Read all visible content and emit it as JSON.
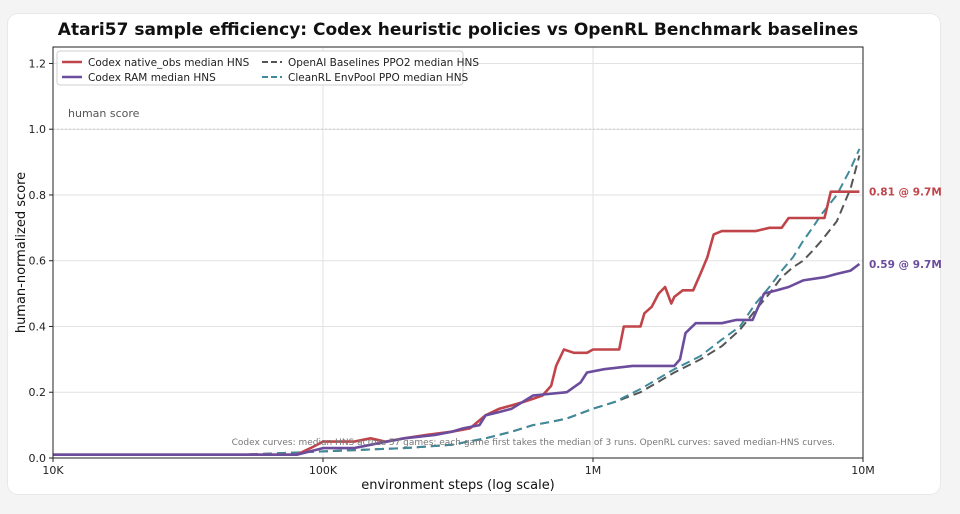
{
  "chart_data": {
    "type": "line",
    "title": "Atari57 sample efficiency: Codex heuristic policies vs OpenRL Benchmark baselines",
    "xlabel": "environment steps (log scale)",
    "ylabel": "human-normalized score",
    "x_scale": "log",
    "xlim": [
      10000,
      10000000
    ],
    "ylim": [
      0,
      1.25
    ],
    "x_ticks": [
      {
        "value": 10000,
        "label": "10K"
      },
      {
        "value": 100000,
        "label": "100K"
      },
      {
        "value": 1000000,
        "label": "1M"
      },
      {
        "value": 10000000,
        "label": "10M"
      }
    ],
    "y_ticks": [
      {
        "value": 0,
        "label": "0.0"
      },
      {
        "value": 0.2,
        "label": "0.2"
      },
      {
        "value": 0.4,
        "label": "0.4"
      },
      {
        "value": 0.6,
        "label": "0.6"
      },
      {
        "value": 0.8,
        "label": "0.8"
      },
      {
        "value": 1.0,
        "label": "1.0"
      },
      {
        "value": 1.2,
        "label": "1.2"
      }
    ],
    "grid": true,
    "legend_position": "top-left",
    "reference_line": {
      "y": 1.0,
      "label": "human score"
    },
    "note": "Codex curves: median HNS across 57 games; each game first takes the median of 3 runs. OpenRL curves: saved median-HNS curves.",
    "end_labels": [
      {
        "series": "Codex native_obs median HNS",
        "text": "0.81 @ 9.7M",
        "y": 0.81
      },
      {
        "series": "Codex RAM median HNS",
        "text": "0.59 @ 9.7M",
        "y": 0.59
      }
    ],
    "series": [
      {
        "name": "Codex native_obs median HNS",
        "color": "#c0454a",
        "style": "solid",
        "points": [
          [
            10000,
            0.01
          ],
          [
            80000,
            0.01
          ],
          [
            90000,
            0.03
          ],
          [
            100000,
            0.05
          ],
          [
            130000,
            0.05
          ],
          [
            150000,
            0.06
          ],
          [
            170000,
            0.05
          ],
          [
            200000,
            0.06
          ],
          [
            240000,
            0.07
          ],
          [
            300000,
            0.08
          ],
          [
            350000,
            0.09
          ],
          [
            400000,
            0.13
          ],
          [
            450000,
            0.15
          ],
          [
            500000,
            0.16
          ],
          [
            550000,
            0.17
          ],
          [
            600000,
            0.18
          ],
          [
            650000,
            0.19
          ],
          [
            700000,
            0.22
          ],
          [
            730000,
            0.28
          ],
          [
            780000,
            0.33
          ],
          [
            850000,
            0.32
          ],
          [
            950000,
            0.32
          ],
          [
            1000000,
            0.33
          ],
          [
            1250000,
            0.33
          ],
          [
            1300000,
            0.4
          ],
          [
            1500000,
            0.4
          ],
          [
            1550000,
            0.44
          ],
          [
            1650000,
            0.46
          ],
          [
            1750000,
            0.5
          ],
          [
            1850000,
            0.52
          ],
          [
            1950000,
            0.47
          ],
          [
            2000000,
            0.49
          ],
          [
            2150000,
            0.51
          ],
          [
            2350000,
            0.51
          ],
          [
            2500000,
            0.56
          ],
          [
            2650000,
            0.61
          ],
          [
            2800000,
            0.68
          ],
          [
            3000000,
            0.69
          ],
          [
            4000000,
            0.69
          ],
          [
            4500000,
            0.7
          ],
          [
            5000000,
            0.7
          ],
          [
            5300000,
            0.73
          ],
          [
            6500000,
            0.73
          ],
          [
            7200000,
            0.73
          ],
          [
            7600000,
            0.81
          ],
          [
            9700000,
            0.81
          ]
        ]
      },
      {
        "name": "Codex RAM median HNS",
        "color": "#6c4c9c",
        "style": "solid",
        "points": [
          [
            10000,
            0.01
          ],
          [
            80000,
            0.01
          ],
          [
            100000,
            0.03
          ],
          [
            130000,
            0.03
          ],
          [
            150000,
            0.04
          ],
          [
            200000,
            0.06
          ],
          [
            260000,
            0.07
          ],
          [
            300000,
            0.08
          ],
          [
            330000,
            0.09
          ],
          [
            380000,
            0.1
          ],
          [
            400000,
            0.13
          ],
          [
            450000,
            0.14
          ],
          [
            500000,
            0.15
          ],
          [
            600000,
            0.19
          ],
          [
            800000,
            0.2
          ],
          [
            900000,
            0.23
          ],
          [
            950000,
            0.26
          ],
          [
            1100000,
            0.27
          ],
          [
            1400000,
            0.28
          ],
          [
            2000000,
            0.28
          ],
          [
            2100000,
            0.3
          ],
          [
            2200000,
            0.38
          ],
          [
            2400000,
            0.41
          ],
          [
            3000000,
            0.41
          ],
          [
            3400000,
            0.42
          ],
          [
            3900000,
            0.42
          ],
          [
            4300000,
            0.5
          ],
          [
            4800000,
            0.51
          ],
          [
            5300000,
            0.52
          ],
          [
            6000000,
            0.54
          ],
          [
            7200000,
            0.55
          ],
          [
            8000000,
            0.56
          ],
          [
            9000000,
            0.57
          ],
          [
            9700000,
            0.59
          ]
        ]
      },
      {
        "name": "OpenAI Baselines PPO2 median HNS",
        "color": "#555555",
        "style": "dashed",
        "points": [
          [
            10000,
            0.01
          ],
          [
            50000,
            0.01
          ],
          [
            100000,
            0.02
          ],
          [
            200000,
            0.03
          ],
          [
            300000,
            0.04
          ],
          [
            400000,
            0.06
          ],
          [
            500000,
            0.08
          ],
          [
            600000,
            0.1
          ],
          [
            700000,
            0.11
          ],
          [
            800000,
            0.12
          ],
          [
            1000000,
            0.15
          ],
          [
            1200000,
            0.17
          ],
          [
            1500000,
            0.2
          ],
          [
            2000000,
            0.26
          ],
          [
            2500000,
            0.3
          ],
          [
            3000000,
            0.34
          ],
          [
            3500000,
            0.39
          ],
          [
            4000000,
            0.45
          ],
          [
            4500000,
            0.5
          ],
          [
            5000000,
            0.55
          ],
          [
            5500000,
            0.58
          ],
          [
            6000000,
            0.6
          ],
          [
            6500000,
            0.63
          ],
          [
            7000000,
            0.66
          ],
          [
            8000000,
            0.72
          ],
          [
            9000000,
            0.82
          ],
          [
            9700000,
            0.92
          ]
        ]
      },
      {
        "name": "CleanRL EnvPool PPO median HNS",
        "color": "#3f8a9b",
        "style": "dashed",
        "points": [
          [
            10000,
            0.01
          ],
          [
            50000,
            0.01
          ],
          [
            100000,
            0.02
          ],
          [
            200000,
            0.03
          ],
          [
            300000,
            0.04
          ],
          [
            400000,
            0.06
          ],
          [
            500000,
            0.08
          ],
          [
            600000,
            0.1
          ],
          [
            700000,
            0.11
          ],
          [
            800000,
            0.12
          ],
          [
            1000000,
            0.15
          ],
          [
            1200000,
            0.17
          ],
          [
            1500000,
            0.21
          ],
          [
            2000000,
            0.27
          ],
          [
            2500000,
            0.31
          ],
          [
            3000000,
            0.36
          ],
          [
            3500000,
            0.4
          ],
          [
            4000000,
            0.47
          ],
          [
            4500000,
            0.52
          ],
          [
            5000000,
            0.57
          ],
          [
            5500000,
            0.61
          ],
          [
            6000000,
            0.66
          ],
          [
            6500000,
            0.7
          ],
          [
            7000000,
            0.74
          ],
          [
            8000000,
            0.8
          ],
          [
            9000000,
            0.88
          ],
          [
            9700000,
            0.94
          ]
        ]
      }
    ]
  }
}
